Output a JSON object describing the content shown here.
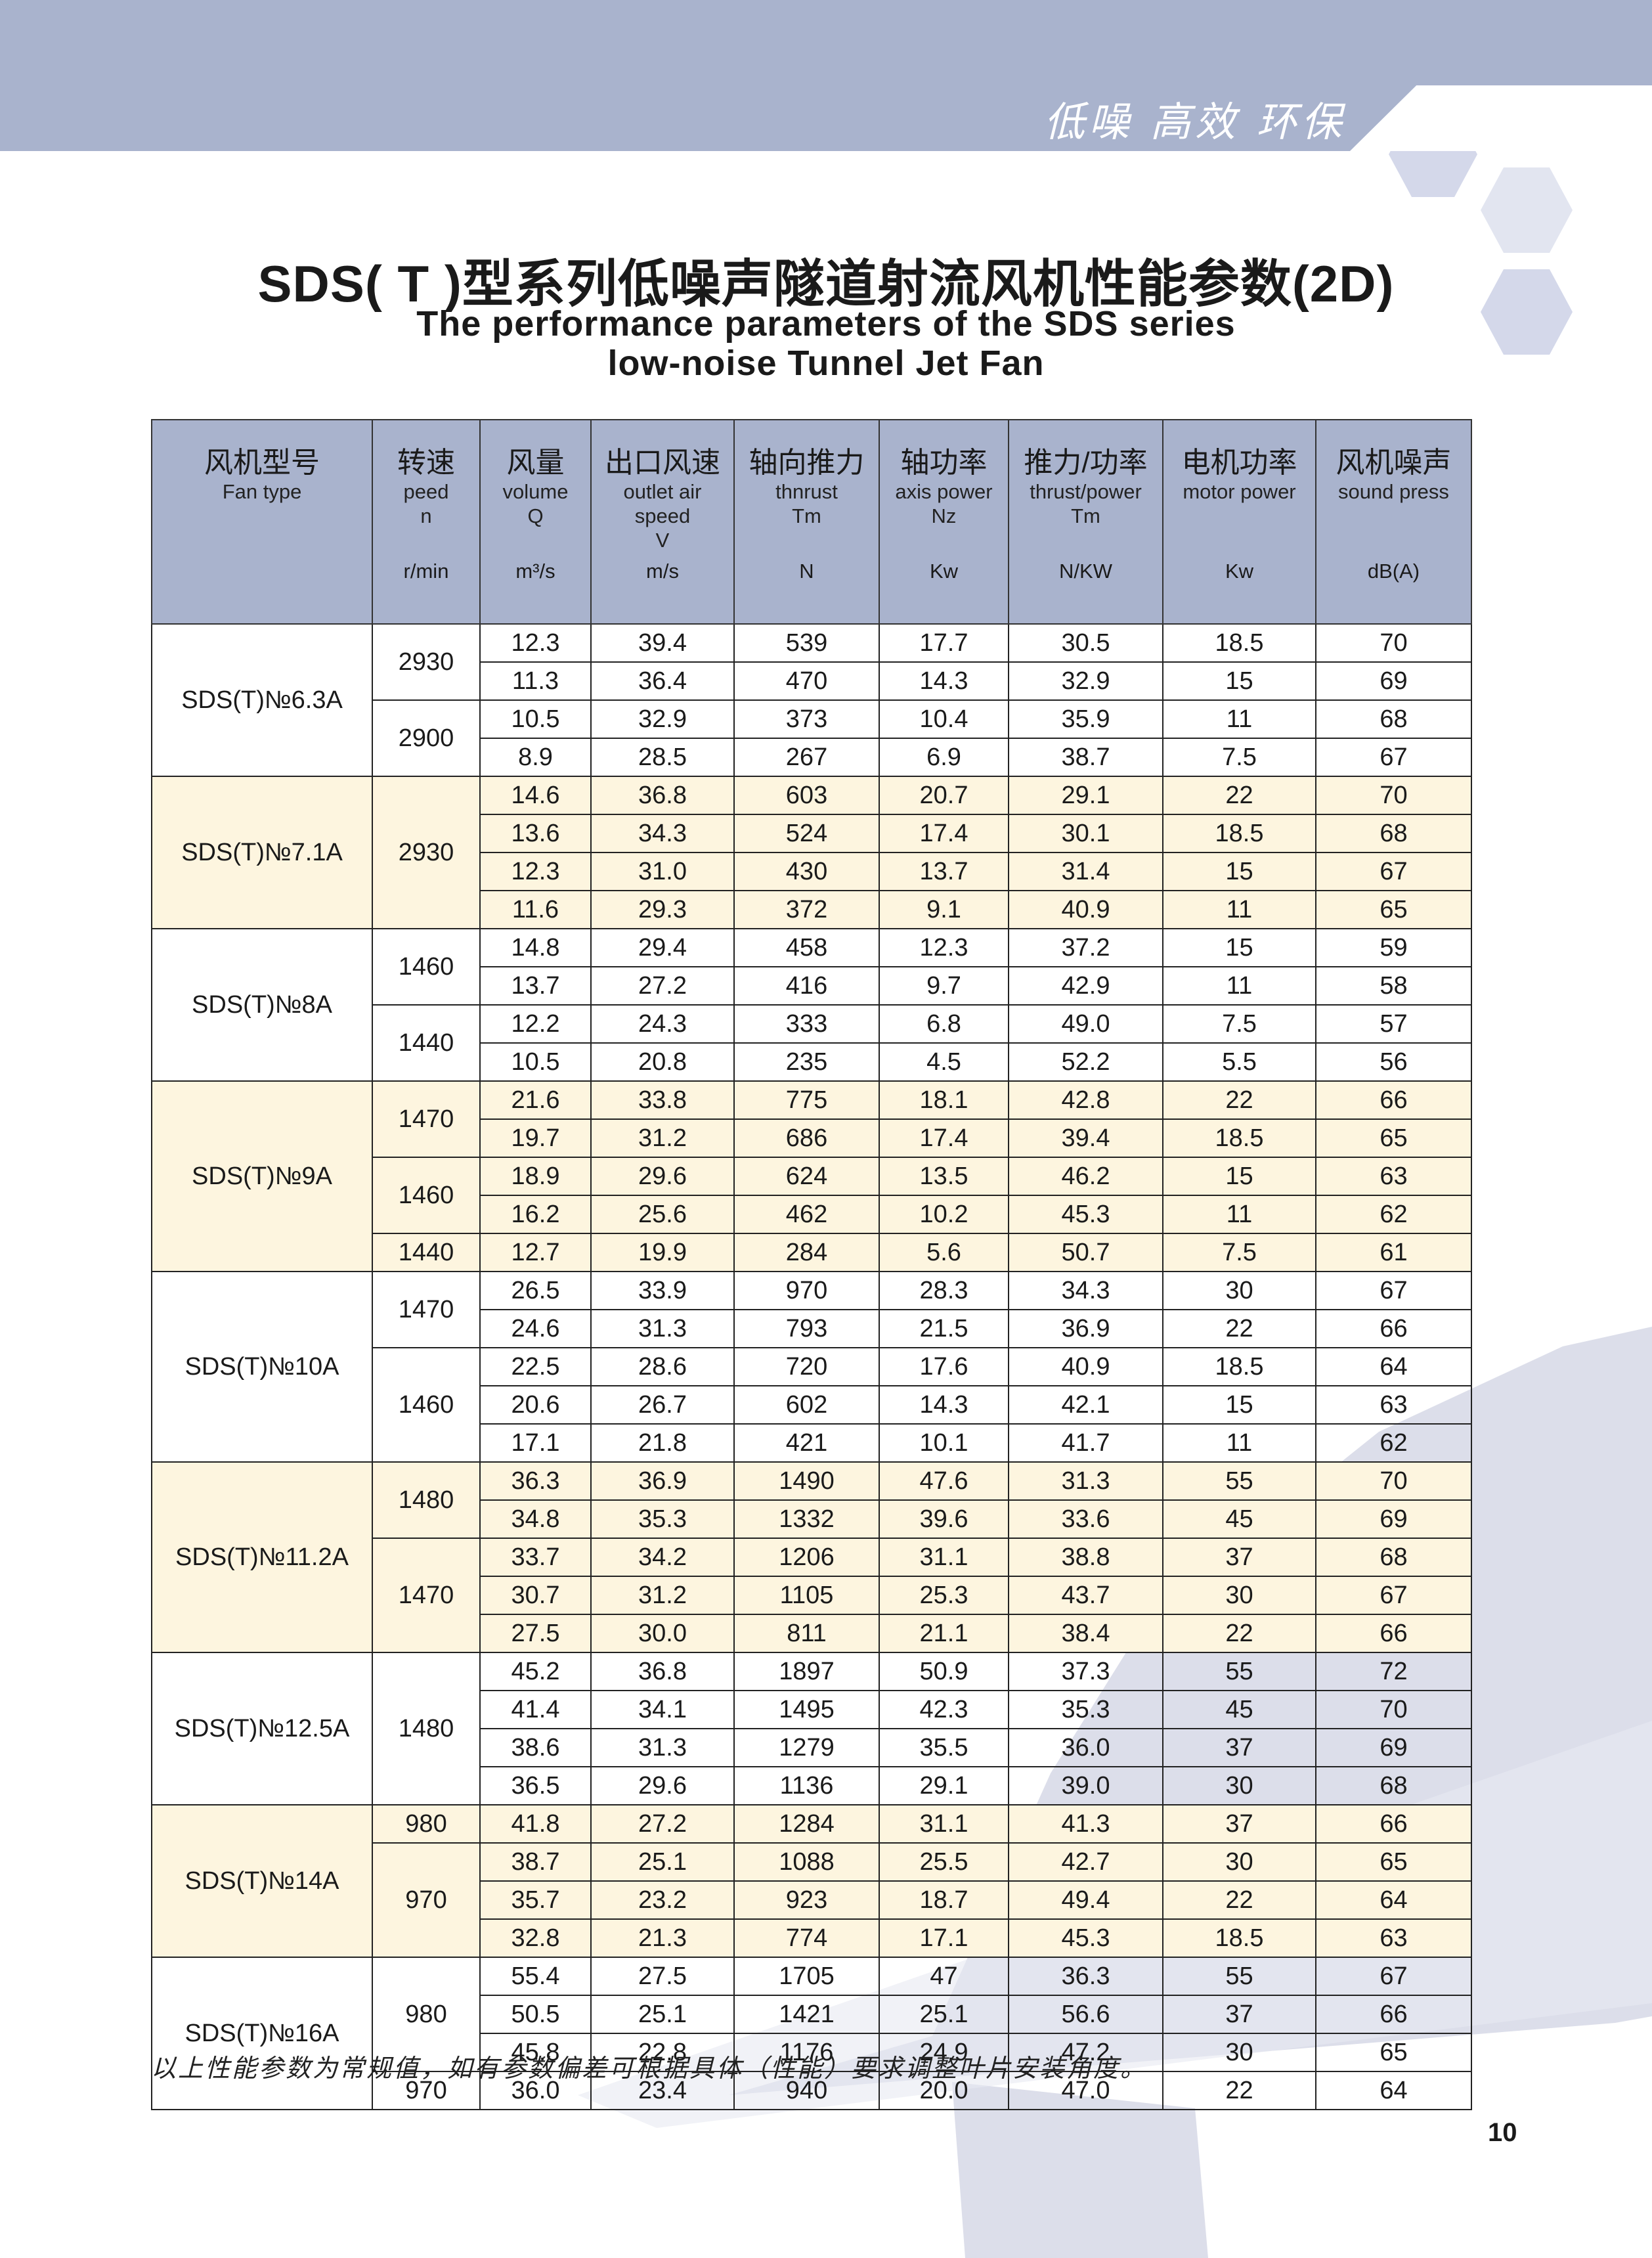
{
  "banner": {
    "slogan": "低噪 高效 环保"
  },
  "title": {
    "cn": "SDS( T )型系列低噪声隧道射流风机性能参数(2D)",
    "en_line1": "The performance parameters of the SDS series",
    "en_line2": "low-noise Tunnel Jet Fan"
  },
  "colors": {
    "header_bg": "#a9b3cd",
    "alt_row_bg": "#fdf5df",
    "watermark": "#dcdeea"
  },
  "table": {
    "columns": [
      {
        "cn": "风机型号",
        "en": "Fan type",
        "unit": ""
      },
      {
        "cn": "转速",
        "en": "peed\nn",
        "unit": "r/min"
      },
      {
        "cn": "风量",
        "en": "volume\nQ",
        "unit": "m³/s"
      },
      {
        "cn": "出口风速",
        "en": "outlet air\nspeed\nV",
        "unit": "m/s"
      },
      {
        "cn": "轴向推力",
        "en": "thnrust\nTm",
        "unit": "N"
      },
      {
        "cn": "轴功率",
        "en": "axis power\nNz",
        "unit": "Kw"
      },
      {
        "cn": "推力/功率",
        "en": "thrust/power\nTm",
        "unit": "N/KW"
      },
      {
        "cn": "电机功率",
        "en": "motor power",
        "unit": "Kw"
      },
      {
        "cn": "风机噪声",
        "en": "sound press",
        "unit": "dB(A)"
      }
    ],
    "groups": [
      {
        "model": "SDS(T)№6.3A",
        "speeds": [
          {
            "speed": "2930",
            "rows": [
              [
                "12.3",
                "39.4",
                "539",
                "17.7",
                "30.5",
                "18.5",
                "70"
              ],
              [
                "11.3",
                "36.4",
                "470",
                "14.3",
                "32.9",
                "15",
                "69"
              ]
            ]
          },
          {
            "speed": "2900",
            "rows": [
              [
                "10.5",
                "32.9",
                "373",
                "10.4",
                "35.9",
                "11",
                "68"
              ],
              [
                "8.9",
                "28.5",
                "267",
                "6.9",
                "38.7",
                "7.5",
                "67"
              ]
            ]
          }
        ]
      },
      {
        "model": "SDS(T)№7.1A",
        "speeds": [
          {
            "speed": "2930",
            "rows": [
              [
                "14.6",
                "36.8",
                "603",
                "20.7",
                "29.1",
                "22",
                "70"
              ],
              [
                "13.6",
                "34.3",
                "524",
                "17.4",
                "30.1",
                "18.5",
                "68"
              ],
              [
                "12.3",
                "31.0",
                "430",
                "13.7",
                "31.4",
                "15",
                "67"
              ],
              [
                "11.6",
                "29.3",
                "372",
                "9.1",
                "40.9",
                "11",
                "65"
              ]
            ]
          }
        ]
      },
      {
        "model": "SDS(T)№8A",
        "speeds": [
          {
            "speed": "1460",
            "rows": [
              [
                "14.8",
                "29.4",
                "458",
                "12.3",
                "37.2",
                "15",
                "59"
              ],
              [
                "13.7",
                "27.2",
                "416",
                "9.7",
                "42.9",
                "11",
                "58"
              ]
            ]
          },
          {
            "speed": "1440",
            "rows": [
              [
                "12.2",
                "24.3",
                "333",
                "6.8",
                "49.0",
                "7.5",
                "57"
              ],
              [
                "10.5",
                "20.8",
                "235",
                "4.5",
                "52.2",
                "5.5",
                "56"
              ]
            ]
          }
        ]
      },
      {
        "model": "SDS(T)№9A",
        "speeds": [
          {
            "speed": "1470",
            "rows": [
              [
                "21.6",
                "33.8",
                "775",
                "18.1",
                "42.8",
                "22",
                "66"
              ],
              [
                "19.7",
                "31.2",
                "686",
                "17.4",
                "39.4",
                "18.5",
                "65"
              ]
            ]
          },
          {
            "speed": "1460",
            "rows": [
              [
                "18.9",
                "29.6",
                "624",
                "13.5",
                "46.2",
                "15",
                "63"
              ],
              [
                "16.2",
                "25.6",
                "462",
                "10.2",
                "45.3",
                "11",
                "62"
              ]
            ]
          },
          {
            "speed": "1440",
            "rows": [
              [
                "12.7",
                "19.9",
                "284",
                "5.6",
                "50.7",
                "7.5",
                "61"
              ]
            ]
          }
        ]
      },
      {
        "model": "SDS(T)№10A",
        "speeds": [
          {
            "speed": "1470",
            "rows": [
              [
                "26.5",
                "33.9",
                "970",
                "28.3",
                "34.3",
                "30",
                "67"
              ],
              [
                "24.6",
                "31.3",
                "793",
                "21.5",
                "36.9",
                "22",
                "66"
              ]
            ]
          },
          {
            "speed": "1460",
            "rows": [
              [
                "22.5",
                "28.6",
                "720",
                "17.6",
                "40.9",
                "18.5",
                "64"
              ],
              [
                "20.6",
                "26.7",
                "602",
                "14.3",
                "42.1",
                "15",
                "63"
              ],
              [
                "17.1",
                "21.8",
                "421",
                "10.1",
                "41.7",
                "11",
                "62"
              ]
            ]
          }
        ]
      },
      {
        "model": "SDS(T)№11.2A",
        "speeds": [
          {
            "speed": "1480",
            "rows": [
              [
                "36.3",
                "36.9",
                "1490",
                "47.6",
                "31.3",
                "55",
                "70"
              ],
              [
                "34.8",
                "35.3",
                "1332",
                "39.6",
                "33.6",
                "45",
                "69"
              ]
            ]
          },
          {
            "speed": "1470",
            "rows": [
              [
                "33.7",
                "34.2",
                "1206",
                "31.1",
                "38.8",
                "37",
                "68"
              ],
              [
                "30.7",
                "31.2",
                "1105",
                "25.3",
                "43.7",
                "30",
                "67"
              ],
              [
                "27.5",
                "30.0",
                "811",
                "21.1",
                "38.4",
                "22",
                "66"
              ]
            ]
          }
        ]
      },
      {
        "model": "SDS(T)№12.5A",
        "speeds": [
          {
            "speed": "1480",
            "rows": [
              [
                "45.2",
                "36.8",
                "1897",
                "50.9",
                "37.3",
                "55",
                "72"
              ],
              [
                "41.4",
                "34.1",
                "1495",
                "42.3",
                "35.3",
                "45",
                "70"
              ],
              [
                "38.6",
                "31.3",
                "1279",
                "35.5",
                "36.0",
                "37",
                "69"
              ],
              [
                "36.5",
                "29.6",
                "1136",
                "29.1",
                "39.0",
                "30",
                "68"
              ]
            ]
          }
        ]
      },
      {
        "model": "SDS(T)№14A",
        "speeds": [
          {
            "speed": "980",
            "rows": [
              [
                "41.8",
                "27.2",
                "1284",
                "31.1",
                "41.3",
                "37",
                "66"
              ]
            ]
          },
          {
            "speed": "970",
            "rows": [
              [
                "38.7",
                "25.1",
                "1088",
                "25.5",
                "42.7",
                "30",
                "65"
              ],
              [
                "35.7",
                "23.2",
                "923",
                "18.7",
                "49.4",
                "22",
                "64"
              ],
              [
                "32.8",
                "21.3",
                "774",
                "17.1",
                "45.3",
                "18.5",
                "63"
              ]
            ]
          }
        ]
      },
      {
        "model": "SDS(T)№16A",
        "speeds": [
          {
            "speed": "980",
            "rows": [
              [
                "55.4",
                "27.5",
                "1705",
                "47",
                "36.3",
                "55",
                "67"
              ],
              [
                "50.5",
                "25.1",
                "1421",
                "25.1",
                "56.6",
                "37",
                "66"
              ],
              [
                "45.8",
                "22.8",
                "1176",
                "24.9",
                "47.2",
                "30",
                "65"
              ]
            ]
          },
          {
            "speed": "970",
            "rows": [
              [
                "36.0",
                "23.4",
                "940",
                "20.0",
                "47.0",
                "22",
                "64"
              ]
            ]
          }
        ]
      }
    ]
  },
  "footnote": "以上性能参数为常规值，如有参数偏差可根据具体（性能）要求调整叶片安装角度。",
  "page_number": "10"
}
